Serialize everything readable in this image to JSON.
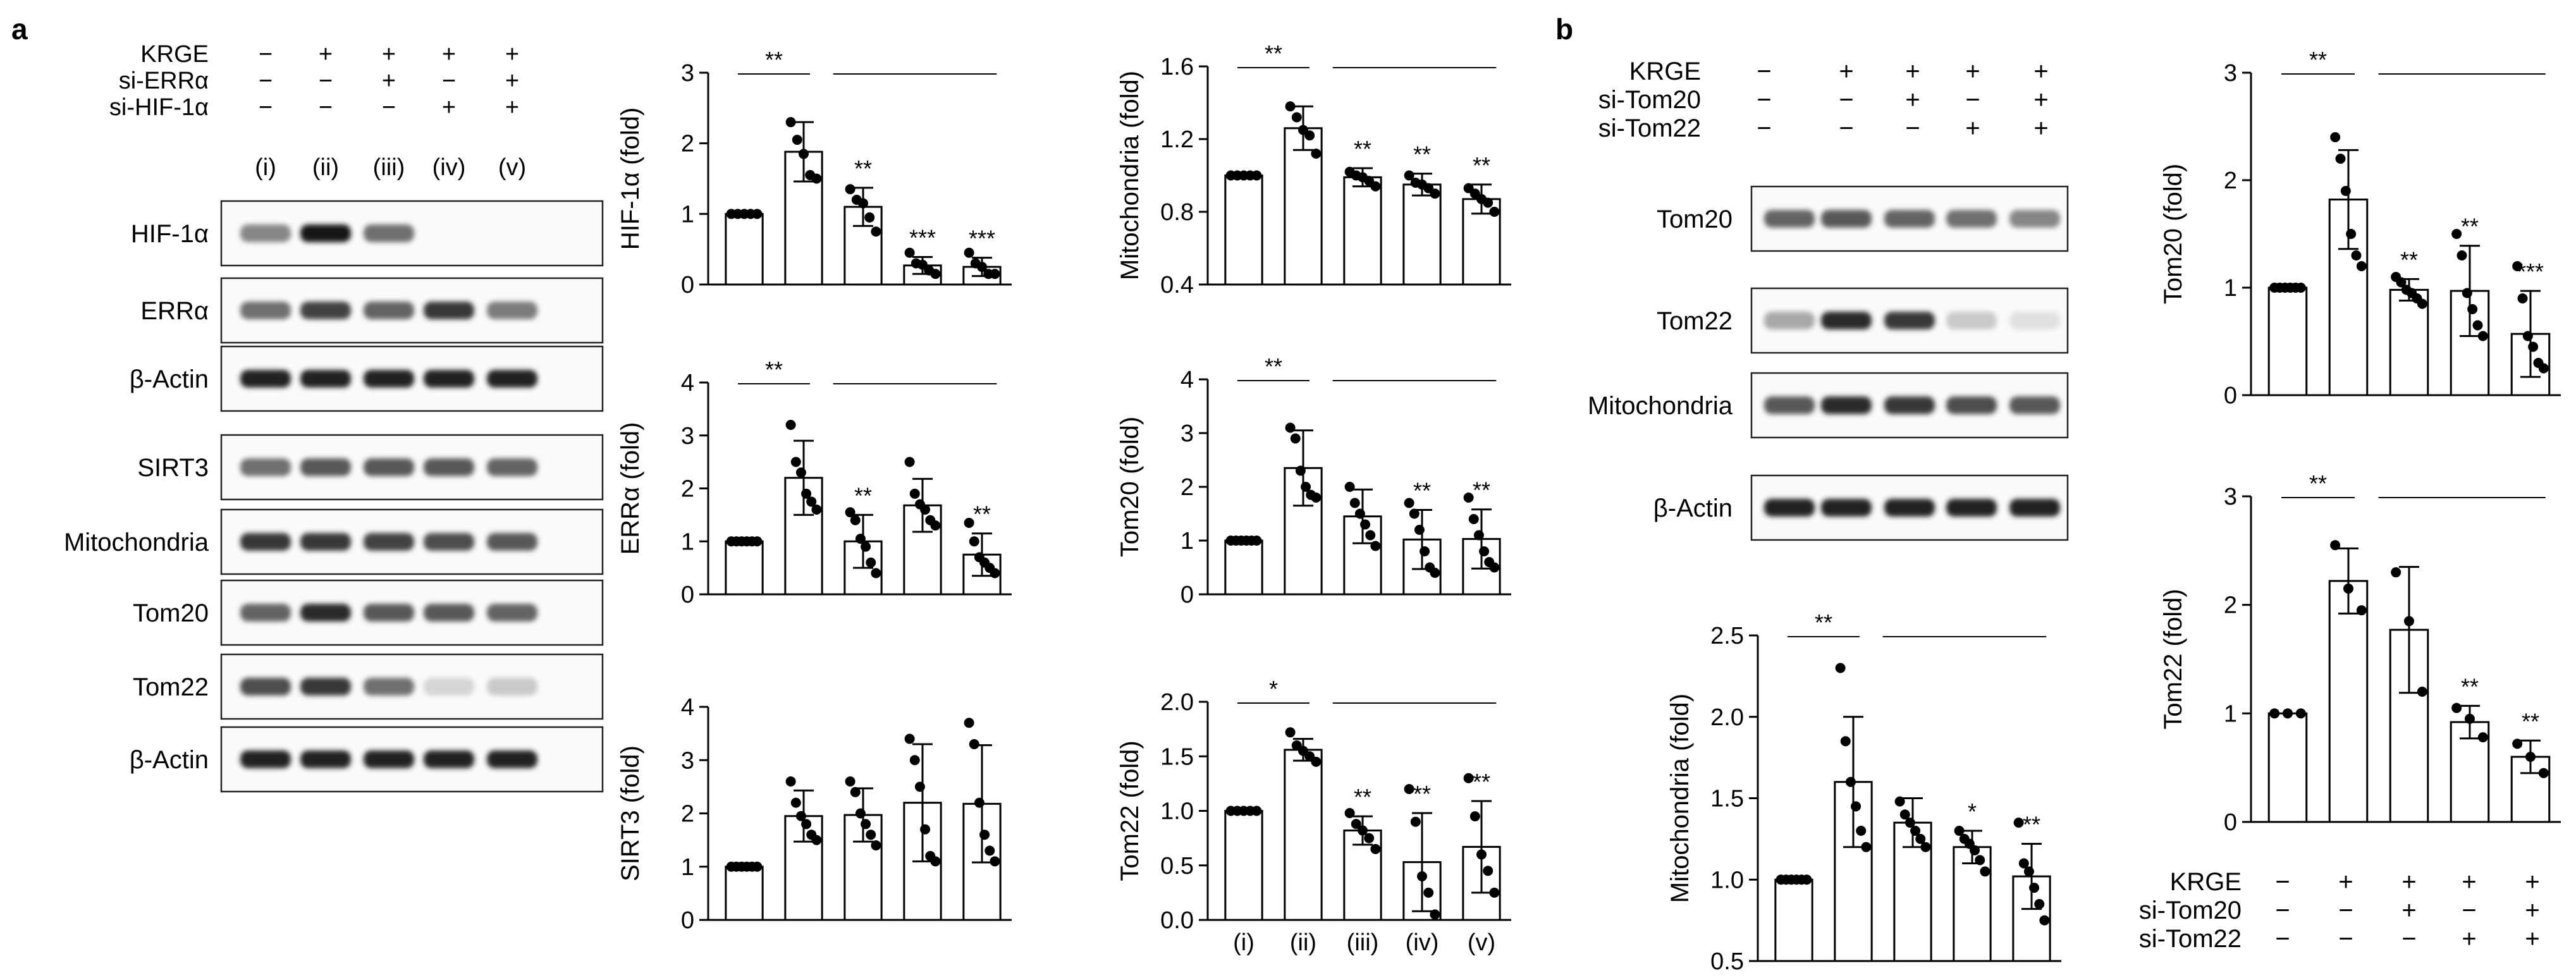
{
  "panels": {
    "a": {
      "label": "a",
      "treatments": [
        {
          "name": "KRGE",
          "signs": [
            "−",
            "+",
            "+",
            "+",
            "+"
          ]
        },
        {
          "name": "si-ERRα",
          "signs": [
            "−",
            "−",
            "+",
            "−",
            "+"
          ]
        },
        {
          "name": "si-HIF-1α",
          "signs": [
            "−",
            "−",
            "−",
            "+",
            "+"
          ]
        }
      ],
      "lanes": [
        "(i)",
        "(ii)",
        "(iii)",
        "(iv)",
        "(v)"
      ],
      "blots": [
        {
          "name": "HIF-1α",
          "intensity": [
            0.45,
            0.95,
            0.55,
            0.0,
            0.0
          ]
        },
        {
          "name": "ERRα",
          "intensity": [
            0.55,
            0.75,
            0.6,
            0.8,
            0.5
          ]
        },
        {
          "name": "β-Actin",
          "intensity": [
            0.9,
            0.9,
            0.9,
            0.9,
            0.9
          ]
        },
        {
          "name": "SIRT3",
          "intensity": [
            0.55,
            0.65,
            0.65,
            0.65,
            0.6
          ]
        },
        {
          "name": "Mitochondria",
          "intensity": [
            0.8,
            0.8,
            0.75,
            0.7,
            0.65
          ]
        },
        {
          "name": "Tom20",
          "intensity": [
            0.6,
            0.85,
            0.65,
            0.65,
            0.6
          ]
        },
        {
          "name": "Tom22",
          "intensity": [
            0.7,
            0.8,
            0.55,
            0.1,
            0.15
          ]
        },
        {
          "name": "β-Actin",
          "intensity": [
            0.9,
            0.9,
            0.9,
            0.9,
            0.9
          ]
        }
      ]
    },
    "b": {
      "label": "b",
      "treatments": [
        {
          "name": "KRGE",
          "signs": [
            "−",
            "+",
            "+",
            "+",
            "+"
          ]
        },
        {
          "name": "si-Tom20",
          "signs": [
            "−",
            "−",
            "+",
            "−",
            "+"
          ]
        },
        {
          "name": "si-Tom22",
          "signs": [
            "−",
            "−",
            "−",
            "+",
            "+"
          ]
        }
      ],
      "blots": [
        {
          "name": "Tom20",
          "intensity": [
            0.6,
            0.65,
            0.6,
            0.55,
            0.45
          ]
        },
        {
          "name": "Tom22",
          "intensity": [
            0.3,
            0.85,
            0.8,
            0.15,
            0.05
          ]
        },
        {
          "name": "Mitochondria",
          "intensity": [
            0.65,
            0.85,
            0.8,
            0.7,
            0.65
          ]
        },
        {
          "name": "β-Actin",
          "intensity": [
            0.9,
            0.9,
            0.9,
            0.9,
            0.9
          ]
        }
      ],
      "bottom_treatments": [
        {
          "name": "KRGE",
          "signs": [
            "−",
            "+",
            "+",
            "+",
            "+"
          ]
        },
        {
          "name": "si-Tom20",
          "signs": [
            "−",
            "−",
            "+",
            "−",
            "+"
          ]
        },
        {
          "name": "si-Tom22",
          "signs": [
            "−",
            "−",
            "−",
            "+",
            "+"
          ]
        }
      ]
    }
  },
  "chart_data": [
    {
      "id": "hif",
      "type": "bar",
      "ylabel": "HIF-1α (fold)",
      "ylim": [
        0,
        3
      ],
      "yticks": [
        "0",
        "1",
        "2",
        "3"
      ],
      "categories": [
        "(i)",
        "(ii)",
        "(iii)",
        "(iv)",
        "(v)"
      ],
      "show_xticks": false,
      "values": [
        1.0,
        1.88,
        1.1,
        0.27,
        0.25
      ],
      "errors": [
        0.0,
        0.42,
        0.27,
        0.12,
        0.13
      ],
      "points": [
        [
          1,
          1,
          1,
          1,
          1
        ],
        [
          2.3,
          2.05,
          1.85,
          1.55,
          1.5
        ],
        [
          1.35,
          1.2,
          1.15,
          0.95,
          0.75
        ],
        [
          0.45,
          0.3,
          0.28,
          0.2,
          0.15
        ],
        [
          0.45,
          0.3,
          0.25,
          0.15,
          0.15
        ]
      ],
      "marks": [
        "",
        "",
        "**",
        "***",
        "***"
      ],
      "top_sig": "**"
    },
    {
      "id": "mito-a",
      "type": "bar",
      "ylabel": "Mitochondria (fold)",
      "ylim": [
        0.4,
        1.6
      ],
      "yticks": [
        "0.4",
        "0.8",
        "1.2",
        "1.6"
      ],
      "categories": [
        "(i)",
        "(ii)",
        "(iii)",
        "(iv)",
        "(v)"
      ],
      "show_xticks": false,
      "values": [
        1.0,
        1.26,
        0.99,
        0.95,
        0.87
      ],
      "errors": [
        0.0,
        0.12,
        0.05,
        0.06,
        0.08
      ],
      "points": [
        [
          1,
          1,
          1,
          1,
          1
        ],
        [
          1.38,
          1.32,
          1.25,
          1.22,
          1.12
        ],
        [
          1.02,
          1.0,
          0.99,
          0.97,
          0.94
        ],
        [
          1.0,
          0.96,
          0.95,
          0.93,
          0.9
        ],
        [
          0.93,
          0.9,
          0.87,
          0.85,
          0.8
        ]
      ],
      "marks": [
        "",
        "",
        "**",
        "**",
        "**"
      ],
      "top_sig": "**"
    },
    {
      "id": "err",
      "type": "bar",
      "ylabel": "ERRα (fold)",
      "ylim": [
        0,
        4
      ],
      "yticks": [
        "0",
        "1",
        "2",
        "3",
        "4"
      ],
      "categories": [
        "(i)",
        "(ii)",
        "(iii)",
        "(iv)",
        "(v)"
      ],
      "show_xticks": false,
      "values": [
        1.0,
        2.2,
        1.0,
        1.68,
        0.75
      ],
      "errors": [
        0.0,
        0.7,
        0.5,
        0.5,
        0.4
      ],
      "points": [
        [
          1,
          1,
          1,
          1,
          1,
          1
        ],
        [
          3.2,
          2.5,
          2.3,
          1.9,
          1.75,
          1.6
        ],
        [
          1.55,
          1.4,
          1.05,
          0.9,
          0.6,
          0.4
        ],
        [
          2.5,
          1.9,
          1.7,
          1.6,
          1.4,
          1.3
        ],
        [
          1.35,
          1.0,
          0.7,
          0.6,
          0.5,
          0.4
        ]
      ],
      "marks": [
        "",
        "",
        "**",
        "",
        "**"
      ],
      "top_sig": "**"
    },
    {
      "id": "tom20-a",
      "type": "bar",
      "ylabel": "Tom20 (fold)",
      "ylim": [
        0,
        4
      ],
      "yticks": [
        "0",
        "1",
        "2",
        "3",
        "4"
      ],
      "categories": [
        "(i)",
        "(ii)",
        "(iii)",
        "(iv)",
        "(v)"
      ],
      "show_xticks": false,
      "values": [
        1.0,
        2.35,
        1.45,
        1.02,
        1.03
      ],
      "errors": [
        0.0,
        0.7,
        0.5,
        0.55,
        0.55
      ],
      "points": [
        [
          1,
          1,
          1,
          1,
          1,
          1
        ],
        [
          3.1,
          2.9,
          2.3,
          2.0,
          1.85,
          1.8
        ],
        [
          2.0,
          1.7,
          1.5,
          1.3,
          1.1,
          0.9
        ],
        [
          1.7,
          1.5,
          1.2,
          0.8,
          0.5,
          0.4
        ],
        [
          1.8,
          1.4,
          1.1,
          0.8,
          0.6,
          0.5
        ]
      ],
      "marks": [
        "",
        "",
        "",
        "**",
        "**"
      ],
      "top_sig": "**"
    },
    {
      "id": "sirt3",
      "type": "bar",
      "ylabel": "SIRT3 (fold)",
      "ylim": [
        0,
        4
      ],
      "yticks": [
        "0",
        "1",
        "2",
        "3",
        "4"
      ],
      "categories": [
        "(i)",
        "(ii)",
        "(iii)",
        "(iv)",
        "(v)"
      ],
      "show_xticks": false,
      "values": [
        1.0,
        1.95,
        1.97,
        2.2,
        2.18
      ],
      "errors": [
        0.0,
        0.48,
        0.5,
        1.1,
        1.1
      ],
      "points": [
        [
          1,
          1,
          1,
          1,
          1,
          1
        ],
        [
          2.6,
          2.2,
          1.95,
          1.8,
          1.6,
          1.5
        ],
        [
          2.6,
          2.4,
          2.0,
          1.8,
          1.6,
          1.4
        ],
        [
          3.4,
          3.0,
          2.5,
          1.7,
          1.2,
          1.1
        ],
        [
          3.7,
          3.3,
          2.2,
          1.6,
          1.3,
          1.1
        ]
      ],
      "marks": [
        "",
        "",
        "",
        "",
        ""
      ],
      "top_sig": ""
    },
    {
      "id": "tom22-a",
      "type": "bar",
      "ylabel": "Tom22 (fold)",
      "ylim": [
        0,
        2.0
      ],
      "yticks": [
        "0.0",
        "0.5",
        "1.0",
        "1.5",
        "2.0"
      ],
      "categories": [
        "(i)",
        "(ii)",
        "(iii)",
        "(iv)",
        "(v)"
      ],
      "show_xticks": true,
      "values": [
        1.0,
        1.56,
        0.82,
        0.53,
        0.67
      ],
      "errors": [
        0.0,
        0.1,
        0.13,
        0.45,
        0.42
      ],
      "points": [
        [
          1,
          1,
          1,
          1,
          1
        ],
        [
          1.72,
          1.6,
          1.55,
          1.5,
          1.45
        ],
        [
          0.98,
          0.88,
          0.82,
          0.75,
          0.65
        ],
        [
          1.2,
          0.9,
          0.4,
          0.25,
          0.05
        ],
        [
          1.3,
          0.95,
          0.6,
          0.45,
          0.25
        ]
      ],
      "marks": [
        "",
        "",
        "**",
        "**",
        "**"
      ],
      "top_sig": "*"
    },
    {
      "id": "mito-b",
      "type": "bar",
      "ylabel": "Mitochondria (fold)",
      "ylim": [
        0.5,
        2.5
      ],
      "yticks": [
        "0.5",
        "1.0",
        "1.5",
        "2.0",
        "2.5"
      ],
      "categories": [
        "",
        "",
        "",
        "",
        ""
      ],
      "show_xticks": false,
      "values": [
        1.0,
        1.6,
        1.35,
        1.2,
        1.02
      ],
      "errors": [
        0.0,
        0.4,
        0.15,
        0.1,
        0.2
      ],
      "points": [
        [
          1,
          1,
          1,
          1,
          1,
          1
        ],
        [
          2.3,
          1.85,
          1.6,
          1.45,
          1.3,
          1.2
        ],
        [
          1.48,
          1.4,
          1.35,
          1.3,
          1.25,
          1.2
        ],
        [
          1.3,
          1.25,
          1.22,
          1.18,
          1.12,
          1.05
        ],
        [
          1.35,
          1.1,
          1.05,
          0.95,
          0.85,
          0.75
        ]
      ],
      "marks": [
        "",
        "",
        "",
        "*",
        "**"
      ],
      "top_sig": "**"
    },
    {
      "id": "tom20-b",
      "type": "bar",
      "ylabel": "Tom20 (fold)",
      "ylim": [
        0,
        3
      ],
      "yticks": [
        "0",
        "1",
        "2",
        "3"
      ],
      "categories": [
        "",
        "",
        "",
        "",
        ""
      ],
      "show_xticks": false,
      "values": [
        1.0,
        1.82,
        0.98,
        0.97,
        0.57
      ],
      "errors": [
        0.0,
        0.46,
        0.1,
        0.42,
        0.4
      ],
      "points": [
        [
          1,
          1,
          1,
          1,
          1,
          1
        ],
        [
          2.4,
          2.2,
          1.9,
          1.5,
          1.3,
          1.2
        ],
        [
          1.1,
          1.05,
          0.98,
          0.95,
          0.9,
          0.85
        ],
        [
          1.5,
          1.3,
          0.95,
          0.8,
          0.65,
          0.55
        ],
        [
          1.2,
          0.9,
          0.55,
          0.45,
          0.3,
          0.25
        ]
      ],
      "marks": [
        "",
        "",
        "**",
        "**",
        "***"
      ],
      "top_sig": "**"
    },
    {
      "id": "tom22-b",
      "type": "bar",
      "ylabel": "Tom22 (fold)",
      "ylim": [
        0,
        3
      ],
      "yticks": [
        "0",
        "1",
        "2",
        "3"
      ],
      "categories": [
        "",
        "",
        "",
        "",
        ""
      ],
      "show_xticks": false,
      "values": [
        1.0,
        2.22,
        1.77,
        0.92,
        0.6
      ],
      "errors": [
        0.0,
        0.3,
        0.58,
        0.15,
        0.15
      ],
      "points": [
        [
          1,
          1,
          1
        ],
        [
          2.55,
          2.15,
          1.95
        ],
        [
          2.3,
          1.85,
          1.2
        ],
        [
          1.05,
          0.95,
          0.78
        ],
        [
          0.72,
          0.6,
          0.45
        ]
      ],
      "marks": [
        "",
        "",
        "",
        "**",
        "**"
      ],
      "top_sig": "**"
    }
  ]
}
